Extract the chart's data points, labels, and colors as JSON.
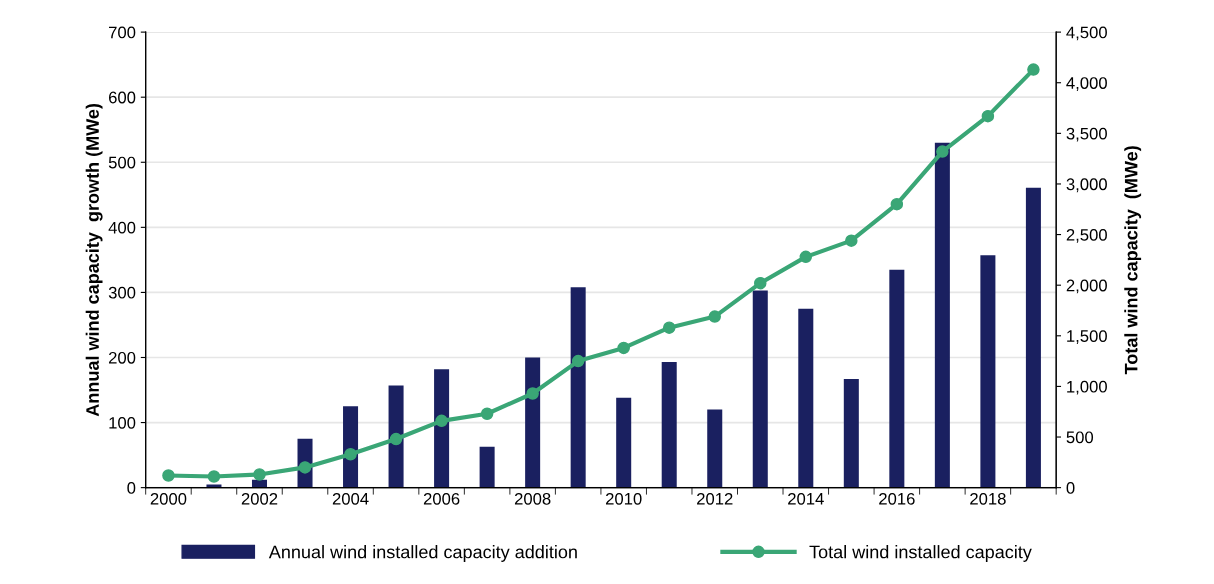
{
  "chart_data": {
    "type": "bar",
    "categories": [
      "2000",
      null,
      "2002",
      null,
      "2004",
      null,
      "2006",
      null,
      "2008",
      null,
      "2010",
      null,
      "2012",
      null,
      "2014",
      null,
      "2016",
      null,
      "2018",
      null
    ],
    "ylabel": "Annual wind capacity  growth (MWe)",
    "y2label": "Total wind capacity  (MWe)",
    "series": [
      {
        "name": "Annual wind installed capacity addition",
        "color": "#1a2060",
        "values": [
          0,
          5,
          12,
          75,
          125,
          157,
          182,
          63,
          200,
          308,
          138,
          193,
          120,
          303,
          275,
          167,
          335,
          530,
          357,
          461
        ]
      },
      {
        "name": "Total wind installed capacity",
        "type": "line",
        "axis": "y2",
        "color": "#3aa676",
        "marker": "circle",
        "values": [
          120,
          110,
          130,
          200,
          330,
          480,
          660,
          730,
          930,
          1250,
          1380,
          1580,
          1690,
          2020,
          2280,
          2440,
          2800,
          3320,
          3670,
          4130
        ]
      }
    ],
    "ylim": [
      0,
      700
    ],
    "yticks": [
      0,
      100,
      200,
      300,
      400,
      500,
      600,
      700
    ],
    "y2lim": [
      0,
      4500
    ],
    "y2ticks": [
      0,
      {
        "value": 500,
        "label": "500"
      },
      {
        "value": 1000,
        "label": "1,000"
      },
      {
        "value": 1500,
        "label": "1,500"
      },
      {
        "value": 2000,
        "label": "2,000"
      },
      {
        "value": 2500,
        "label": "2,500"
      },
      {
        "value": 3000,
        "label": "3,000"
      },
      {
        "value": 3500,
        "label": "3,500"
      },
      {
        "value": 4000,
        "label": "4,000"
      },
      {
        "value": 4500,
        "label": "4,500"
      }
    ],
    "grid": "y",
    "legend": "bottom"
  }
}
